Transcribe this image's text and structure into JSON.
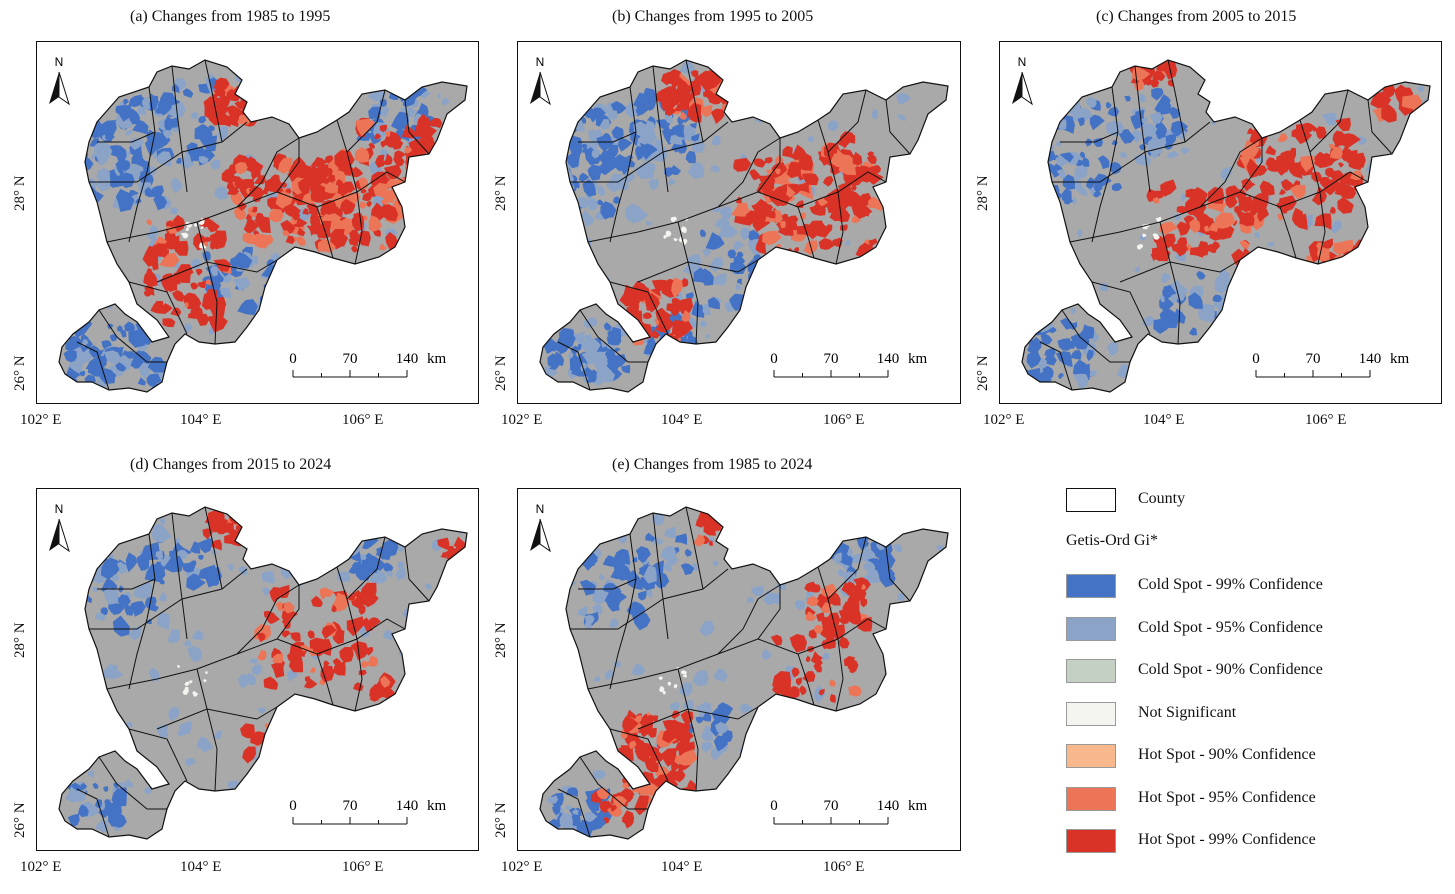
{
  "panels": [
    {
      "title": "(a) Changes from 1985 to 1995",
      "variant": "a"
    },
    {
      "title": "(b) Changes from 1995 to 2005",
      "variant": "b"
    },
    {
      "title": "(c) Changes from 2005 to 2015",
      "variant": "c"
    },
    {
      "title": "(d) Changes from 2015 to 2024",
      "variant": "d"
    },
    {
      "title": "(e) Changes from 1985 to 2024",
      "variant": "e"
    }
  ],
  "axes": {
    "lat_labels": [
      "28° N",
      "26° N"
    ],
    "lon_labels": [
      "102° E",
      "104° E",
      "106° E"
    ]
  },
  "north_arrow": "N",
  "scale_bar": {
    "ticks": [
      "0",
      "70",
      "140"
    ],
    "unit": "km"
  },
  "legend": {
    "county_label": "County",
    "title": "Getis-Ord Gi*",
    "items": [
      {
        "label": "Cold Spot - 99% Confidence",
        "color": "#4472c4"
      },
      {
        "label": "Cold Spot - 95% Confidence",
        "color": "#8ba3c7"
      },
      {
        "label": "Cold Spot - 90% Confidence",
        "color": "#c3d0c3"
      },
      {
        "label": "Not Significant",
        "color": "#f4f4f0"
      },
      {
        "label": "Hot Spot - 90% Confidence",
        "color": "#f8b88b"
      },
      {
        "label": "Hot Spot - 95% Confidence",
        "color": "#ec7557"
      },
      {
        "label": "Hot Spot - 99% Confidence",
        "color": "#d93327"
      }
    ]
  },
  "colors": {
    "base": "#a9a9a9",
    "cold99": "#4472c4",
    "cold95": "#8ba3c7",
    "hot95": "#ec7557",
    "hot99": "#d93327",
    "ns": "#f4f4f0"
  }
}
